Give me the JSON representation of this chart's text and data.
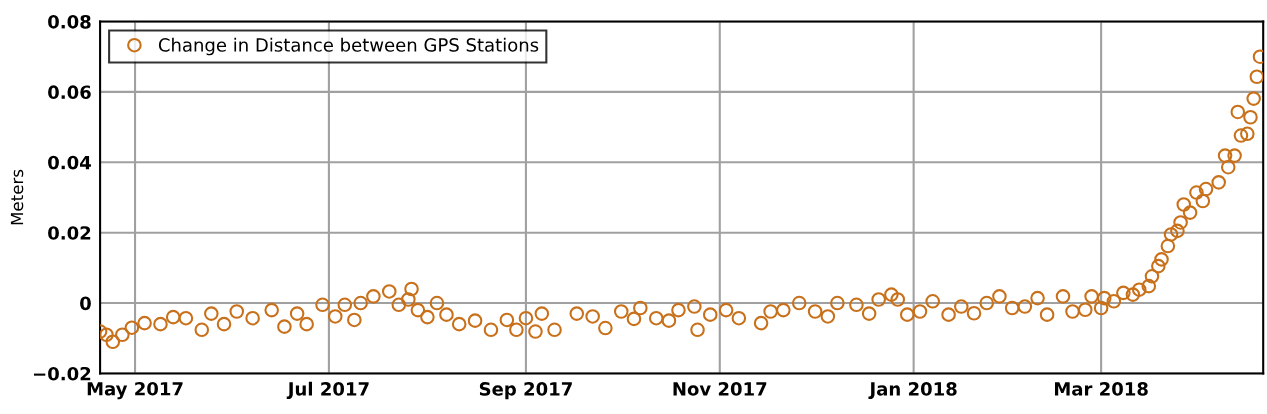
{
  "chart_data": {
    "type": "scatter",
    "ylabel": "Meters",
    "x": [
      "2017-04-20",
      "2017-04-22",
      "2017-04-24",
      "2017-04-27",
      "2017-04-30",
      "2017-05-04",
      "2017-05-09",
      "2017-05-13",
      "2017-05-17",
      "2017-05-22",
      "2017-05-25",
      "2017-05-29",
      "2017-06-02",
      "2017-06-07",
      "2017-06-13",
      "2017-06-17",
      "2017-06-21",
      "2017-06-24",
      "2017-06-29",
      "2017-07-03",
      "2017-07-06",
      "2017-07-09",
      "2017-07-11",
      "2017-07-15",
      "2017-07-20",
      "2017-07-23",
      "2017-07-26",
      "2017-07-27",
      "2017-07-29",
      "2017-08-01",
      "2017-08-04",
      "2017-08-07",
      "2017-08-11",
      "2017-08-16",
      "2017-08-21",
      "2017-08-26",
      "2017-08-29",
      "2017-09-01",
      "2017-09-04",
      "2017-09-06",
      "2017-09-10",
      "2017-09-17",
      "2017-09-22",
      "2017-09-26",
      "2017-10-01",
      "2017-10-05",
      "2017-10-07",
      "2017-10-12",
      "2017-10-16",
      "2017-10-19",
      "2017-10-24",
      "2017-10-25",
      "2017-10-29",
      "2017-11-03",
      "2017-11-07",
      "2017-11-14",
      "2017-11-17",
      "2017-11-21",
      "2017-11-26",
      "2017-12-01",
      "2017-12-05",
      "2017-12-08",
      "2017-12-14",
      "2017-12-18",
      "2017-12-21",
      "2017-12-25",
      "2017-12-27",
      "2017-12-30",
      "2018-01-03",
      "2018-01-07",
      "2018-01-12",
      "2018-01-16",
      "2018-01-20",
      "2018-01-24",
      "2018-01-28",
      "2018-02-01",
      "2018-02-05",
      "2018-02-09",
      "2018-02-12",
      "2018-02-17",
      "2018-02-20",
      "2018-02-24",
      "2018-02-26",
      "2018-03-01",
      "2018-03-02",
      "2018-03-05",
      "2018-03-08",
      "2018-03-11",
      "2018-03-13",
      "2018-03-16",
      "2018-03-17",
      "2018-03-19",
      "2018-03-20",
      "2018-03-22",
      "2018-03-23",
      "2018-03-25",
      "2018-03-26",
      "2018-03-27",
      "2018-03-29",
      "2018-03-31",
      "2018-04-02",
      "2018-04-03",
      "2018-04-07",
      "2018-04-09",
      "2018-04-10",
      "2018-04-12",
      "2018-04-13",
      "2018-04-14",
      "2018-04-16",
      "2018-04-17",
      "2018-04-18",
      "2018-04-19",
      "2018-04-20"
    ],
    "series": [
      {
        "name": "Change in Distance between GPS Stations",
        "color": "#c8701a",
        "values": [
          -0.0081,
          -0.009,
          -0.011,
          -0.009,
          -0.007,
          -0.0057,
          -0.006,
          -0.004,
          -0.0043,
          -0.0076,
          -0.003,
          -0.006,
          -0.0024,
          -0.0043,
          -0.002,
          -0.0067,
          -0.003,
          -0.006,
          -0.0005,
          -0.0038,
          -0.0005,
          -0.0048,
          0.0,
          0.0019,
          0.0033,
          -0.0005,
          0.001,
          0.004,
          -0.002,
          -0.004,
          0.0,
          -0.0033,
          -0.006,
          -0.005,
          -0.0076,
          -0.0048,
          -0.0076,
          -0.0043,
          -0.0081,
          -0.003,
          -0.0076,
          -0.003,
          -0.0038,
          -0.0071,
          -0.0024,
          -0.0045,
          -0.0014,
          -0.0043,
          -0.005,
          -0.002,
          -0.001,
          -0.0076,
          -0.0033,
          -0.002,
          -0.0043,
          -0.0057,
          -0.0024,
          -0.002,
          0.0,
          -0.0024,
          -0.0038,
          0.0,
          -0.0005,
          -0.003,
          0.001,
          0.0024,
          0.001,
          -0.0033,
          -0.0024,
          0.0005,
          -0.0033,
          -0.001,
          -0.0029,
          0.0,
          0.0019,
          -0.0014,
          -0.001,
          0.0014,
          -0.0033,
          0.0019,
          -0.0024,
          -0.0019,
          0.0019,
          -0.0014,
          0.0014,
          0.0005,
          0.0029,
          0.0024,
          0.0038,
          0.0048,
          0.0076,
          0.0105,
          0.0124,
          0.0162,
          0.0195,
          0.0205,
          0.0229,
          0.028,
          0.0257,
          0.0314,
          0.029,
          0.0324,
          0.0343,
          0.0419,
          0.0386,
          0.0419,
          0.0543,
          0.0476,
          0.0481,
          0.0528,
          0.0581,
          0.0643,
          0.07
        ]
      }
    ],
    "xlim": [
      "2017-04-20",
      "2018-04-21"
    ],
    "xticks": [
      {
        "value": "2017-05-01",
        "label": "May 2017"
      },
      {
        "value": "2017-07-01",
        "label": "Jul 2017"
      },
      {
        "value": "2017-09-01",
        "label": "Sep 2017"
      },
      {
        "value": "2017-11-01",
        "label": "Nov 2017"
      },
      {
        "value": "2018-01-01",
        "label": "Jan 2018"
      },
      {
        "value": "2018-03-01",
        "label": "Mar 2018"
      }
    ],
    "ylim": [
      -0.02,
      0.08
    ],
    "yticks": [
      {
        "value": -0.02,
        "label": "−0.02"
      },
      0,
      0.02,
      0.04,
      0.06,
      0.08
    ],
    "grid": true,
    "legend": "top left",
    "marker": "circle"
  }
}
